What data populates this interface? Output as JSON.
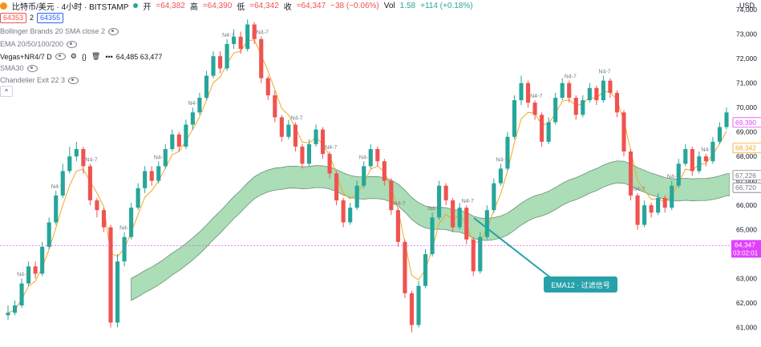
{
  "header": {
    "symbol": "比特币/美元 · 4小时 · BITSTAMP",
    "open_label": "开",
    "open": "=64,382",
    "high_label": "高",
    "high": "=64,390",
    "low_label": "低",
    "low": "=64,342",
    "close_label": "收",
    "close": "=64,347",
    "change": "−38 (−0.06%)",
    "vol_label": "Vol",
    "vol": "1.58",
    "vol_change": "+114 (+0.18%)",
    "bid": "64353",
    "spread": "2",
    "ask": "64355"
  },
  "indicators": [
    {
      "label": "Bollinger Brands 20 SMA close 2"
    },
    {
      "label": "EMA 20/50/100/200"
    },
    {
      "label": "Vegas+NR4/7 D",
      "values": "64,485  63,477"
    },
    {
      "label": "SMA30"
    },
    {
      "label": "Chandelier Exit 22 3"
    }
  ],
  "collapse_symbol": "^",
  "annotation": "EMA12 · 过滤信号",
  "colors": {
    "up": "#26a69a",
    "down": "#ef5350",
    "ema": "#f6a623",
    "band_fill": "#8fd19e",
    "band_line": "#6b8f72",
    "annot": "#27a1a9",
    "pink": "#e040fb"
  },
  "chart_data": {
    "type": "candlestick",
    "ylim": [
      60200,
      74400
    ],
    "y_ticks": [
      74000,
      73000,
      72000,
      71000,
      70000,
      69000,
      68000,
      67000,
      66000,
      65000,
      64000,
      63000,
      62000,
      61000
    ],
    "axis_unit": "USD",
    "price_labels": [
      {
        "text": "69,390",
        "value": 69390,
        "color": "#e040fb"
      },
      {
        "text": "68,342",
        "value": 68342,
        "color": "#f6a623"
      },
      {
        "text": "67,226",
        "value": 67226,
        "color": "#787b86"
      },
      {
        "text": "66,720",
        "value": 66720,
        "color": "#787b86"
      }
    ],
    "last_price": {
      "text": "64,347",
      "countdown": "03:02:01",
      "value": 64347,
      "color": "#e040fb"
    },
    "nr_label": "N4-7",
    "ema_color": "#f6a623",
    "candles": [
      {
        "o": 61500,
        "c": 61600,
        "h": 61900,
        "l": 61300
      },
      {
        "o": 61600,
        "c": 61900,
        "h": 62100,
        "l": 61500
      },
      {
        "o": 61900,
        "c": 62800,
        "h": 63000,
        "l": 61800
      },
      {
        "o": 62800,
        "c": 63500,
        "h": 63700,
        "l": 62700
      },
      {
        "o": 63500,
        "c": 63200,
        "h": 63700,
        "l": 63000
      },
      {
        "o": 63200,
        "c": 64300,
        "h": 64500,
        "l": 63100
      },
      {
        "o": 64300,
        "c": 65300,
        "h": 65500,
        "l": 64200
      },
      {
        "o": 65300,
        "c": 66400,
        "h": 66600,
        "l": 65200
      },
      {
        "o": 66400,
        "c": 67400,
        "h": 67700,
        "l": 66300
      },
      {
        "o": 67400,
        "c": 68000,
        "h": 68400,
        "l": 67300
      },
      {
        "o": 68000,
        "c": 68300,
        "h": 68600,
        "l": 67800
      },
      {
        "o": 68300,
        "c": 67600,
        "h": 68400,
        "l": 67300
      },
      {
        "o": 67600,
        "c": 66200,
        "h": 67700,
        "l": 66000
      },
      {
        "o": 66200,
        "c": 65800,
        "h": 66300,
        "l": 65500
      },
      {
        "o": 65800,
        "c": 65100,
        "h": 65900,
        "l": 64900
      },
      {
        "o": 65100,
        "c": 61200,
        "h": 65200,
        "l": 61000
      },
      {
        "o": 61200,
        "c": 63700,
        "h": 64000,
        "l": 61000
      },
      {
        "o": 63700,
        "c": 64700,
        "h": 64900,
        "l": 63500
      },
      {
        "o": 64700,
        "c": 65900,
        "h": 66100,
        "l": 64600
      },
      {
        "o": 65900,
        "c": 66700,
        "h": 66900,
        "l": 65800
      },
      {
        "o": 66700,
        "c": 67400,
        "h": 67600,
        "l": 66500
      },
      {
        "o": 67400,
        "c": 67000,
        "h": 67600,
        "l": 66800
      },
      {
        "o": 67000,
        "c": 67600,
        "h": 67800,
        "l": 66900
      },
      {
        "o": 67600,
        "c": 68300,
        "h": 68500,
        "l": 67500
      },
      {
        "o": 68300,
        "c": 68900,
        "h": 69100,
        "l": 68200
      },
      {
        "o": 68900,
        "c": 68400,
        "h": 69000,
        "l": 68200
      },
      {
        "o": 68400,
        "c": 69300,
        "h": 69500,
        "l": 68300
      },
      {
        "o": 69300,
        "c": 69800,
        "h": 70000,
        "l": 69100
      },
      {
        "o": 69800,
        "c": 70400,
        "h": 70600,
        "l": 69700
      },
      {
        "o": 70400,
        "c": 71300,
        "h": 71500,
        "l": 70300
      },
      {
        "o": 71300,
        "c": 72100,
        "h": 72300,
        "l": 71200
      },
      {
        "o": 72100,
        "c": 71600,
        "h": 72300,
        "l": 71400
      },
      {
        "o": 71600,
        "c": 72600,
        "h": 72800,
        "l": 71500
      },
      {
        "o": 72600,
        "c": 72900,
        "h": 73200,
        "l": 72400
      },
      {
        "o": 72900,
        "c": 72400,
        "h": 73100,
        "l": 72200
      },
      {
        "o": 72400,
        "c": 73400,
        "h": 73600,
        "l": 72300
      },
      {
        "o": 73400,
        "c": 72800,
        "h": 73500,
        "l": 72600
      },
      {
        "o": 72800,
        "c": 71200,
        "h": 72900,
        "l": 71000
      },
      {
        "o": 71200,
        "c": 70500,
        "h": 71300,
        "l": 70300
      },
      {
        "o": 70500,
        "c": 69600,
        "h": 70700,
        "l": 69400
      },
      {
        "o": 69600,
        "c": 68800,
        "h": 69700,
        "l": 68600
      },
      {
        "o": 68800,
        "c": 69300,
        "h": 69500,
        "l": 68700
      },
      {
        "o": 69300,
        "c": 68400,
        "h": 69400,
        "l": 68200
      },
      {
        "o": 68400,
        "c": 67700,
        "h": 68500,
        "l": 67500
      },
      {
        "o": 67700,
        "c": 68500,
        "h": 68700,
        "l": 67600
      },
      {
        "o": 68500,
        "c": 69100,
        "h": 69300,
        "l": 68400
      },
      {
        "o": 69100,
        "c": 68100,
        "h": 69200,
        "l": 67900
      },
      {
        "o": 68100,
        "c": 67300,
        "h": 68200,
        "l": 67100
      },
      {
        "o": 67300,
        "c": 66200,
        "h": 67400,
        "l": 66000
      },
      {
        "o": 66200,
        "c": 65300,
        "h": 66300,
        "l": 65100
      },
      {
        "o": 65300,
        "c": 65900,
        "h": 66100,
        "l": 65200
      },
      {
        "o": 65900,
        "c": 66800,
        "h": 67000,
        "l": 65800
      },
      {
        "o": 66800,
        "c": 67600,
        "h": 67800,
        "l": 66700
      },
      {
        "o": 67600,
        "c": 68300,
        "h": 68500,
        "l": 67500
      },
      {
        "o": 68300,
        "c": 67800,
        "h": 68400,
        "l": 67600
      },
      {
        "o": 67800,
        "c": 67000,
        "h": 67900,
        "l": 66800
      },
      {
        "o": 67000,
        "c": 65800,
        "h": 67100,
        "l": 65600
      },
      {
        "o": 65800,
        "c": 64500,
        "h": 65900,
        "l": 64300
      },
      {
        "o": 64500,
        "c": 62400,
        "h": 64600,
        "l": 62200
      },
      {
        "o": 62400,
        "c": 61100,
        "h": 62500,
        "l": 60800
      },
      {
        "o": 61100,
        "c": 62700,
        "h": 62900,
        "l": 61000
      },
      {
        "o": 62700,
        "c": 64000,
        "h": 64200,
        "l": 62600
      },
      {
        "o": 64000,
        "c": 65500,
        "h": 65700,
        "l": 63900
      },
      {
        "o": 65500,
        "c": 66800,
        "h": 67000,
        "l": 65400
      },
      {
        "o": 66800,
        "c": 66200,
        "h": 66900,
        "l": 66000
      },
      {
        "o": 66200,
        "c": 65100,
        "h": 66300,
        "l": 64900
      },
      {
        "o": 65100,
        "c": 65900,
        "h": 66100,
        "l": 65000
      },
      {
        "o": 65900,
        "c": 64600,
        "h": 66000,
        "l": 64400
      },
      {
        "o": 64600,
        "c": 63300,
        "h": 64700,
        "l": 63100
      },
      {
        "o": 63300,
        "c": 64700,
        "h": 64900,
        "l": 63200
      },
      {
        "o": 64700,
        "c": 65800,
        "h": 66000,
        "l": 64600
      },
      {
        "o": 65800,
        "c": 66900,
        "h": 67100,
        "l": 65700
      },
      {
        "o": 66900,
        "c": 67500,
        "h": 67700,
        "l": 66800
      },
      {
        "o": 67500,
        "c": 68800,
        "h": 69000,
        "l": 67400
      },
      {
        "o": 68800,
        "c": 70300,
        "h": 70500,
        "l": 68700
      },
      {
        "o": 70300,
        "c": 71000,
        "h": 71300,
        "l": 70100
      },
      {
        "o": 71000,
        "c": 70200,
        "h": 71100,
        "l": 70000
      },
      {
        "o": 70200,
        "c": 69700,
        "h": 70300,
        "l": 69500
      },
      {
        "o": 69700,
        "c": 68600,
        "h": 69800,
        "l": 68400
      },
      {
        "o": 68600,
        "c": 69400,
        "h": 69600,
        "l": 68500
      },
      {
        "o": 69400,
        "c": 70400,
        "h": 70600,
        "l": 69300
      },
      {
        "o": 70400,
        "c": 71000,
        "h": 71200,
        "l": 70300
      },
      {
        "o": 71000,
        "c": 70400,
        "h": 71100,
        "l": 70200
      },
      {
        "o": 70400,
        "c": 69700,
        "h": 70500,
        "l": 69500
      },
      {
        "o": 69700,
        "c": 70300,
        "h": 70500,
        "l": 69600
      },
      {
        "o": 70300,
        "c": 70800,
        "h": 71000,
        "l": 70200
      },
      {
        "o": 70800,
        "c": 70300,
        "h": 70900,
        "l": 70100
      },
      {
        "o": 70300,
        "c": 71100,
        "h": 71300,
        "l": 70200
      },
      {
        "o": 71100,
        "c": 70600,
        "h": 71200,
        "l": 70400
      },
      {
        "o": 70600,
        "c": 69800,
        "h": 70700,
        "l": 69600
      },
      {
        "o": 69800,
        "c": 68200,
        "h": 69900,
        "l": 68000
      },
      {
        "o": 68200,
        "c": 66400,
        "h": 68300,
        "l": 66200
      },
      {
        "o": 66400,
        "c": 65200,
        "h": 66500,
        "l": 65000
      },
      {
        "o": 65200,
        "c": 66000,
        "h": 66200,
        "l": 65100
      },
      {
        "o": 66000,
        "c": 65700,
        "h": 66100,
        "l": 65500
      },
      {
        "o": 65700,
        "c": 66300,
        "h": 66500,
        "l": 65600
      },
      {
        "o": 66300,
        "c": 65900,
        "h": 66400,
        "l": 65700
      },
      {
        "o": 65900,
        "c": 66800,
        "h": 67000,
        "l": 65800
      },
      {
        "o": 66800,
        "c": 67700,
        "h": 67900,
        "l": 66700
      },
      {
        "o": 67700,
        "c": 68300,
        "h": 68500,
        "l": 67600
      },
      {
        "o": 68300,
        "c": 67400,
        "h": 68400,
        "l": 67200
      },
      {
        "o": 67400,
        "c": 68000,
        "h": 68200,
        "l": 67300
      },
      {
        "o": 68000,
        "c": 67800,
        "h": 68100,
        "l": 67600
      },
      {
        "o": 67800,
        "c": 68600,
        "h": 68800,
        "l": 67700
      },
      {
        "o": 68600,
        "c": 69200,
        "h": 69400,
        "l": 68500
      },
      {
        "o": 69200,
        "c": 69800,
        "h": 70000,
        "l": 69100
      }
    ]
  }
}
